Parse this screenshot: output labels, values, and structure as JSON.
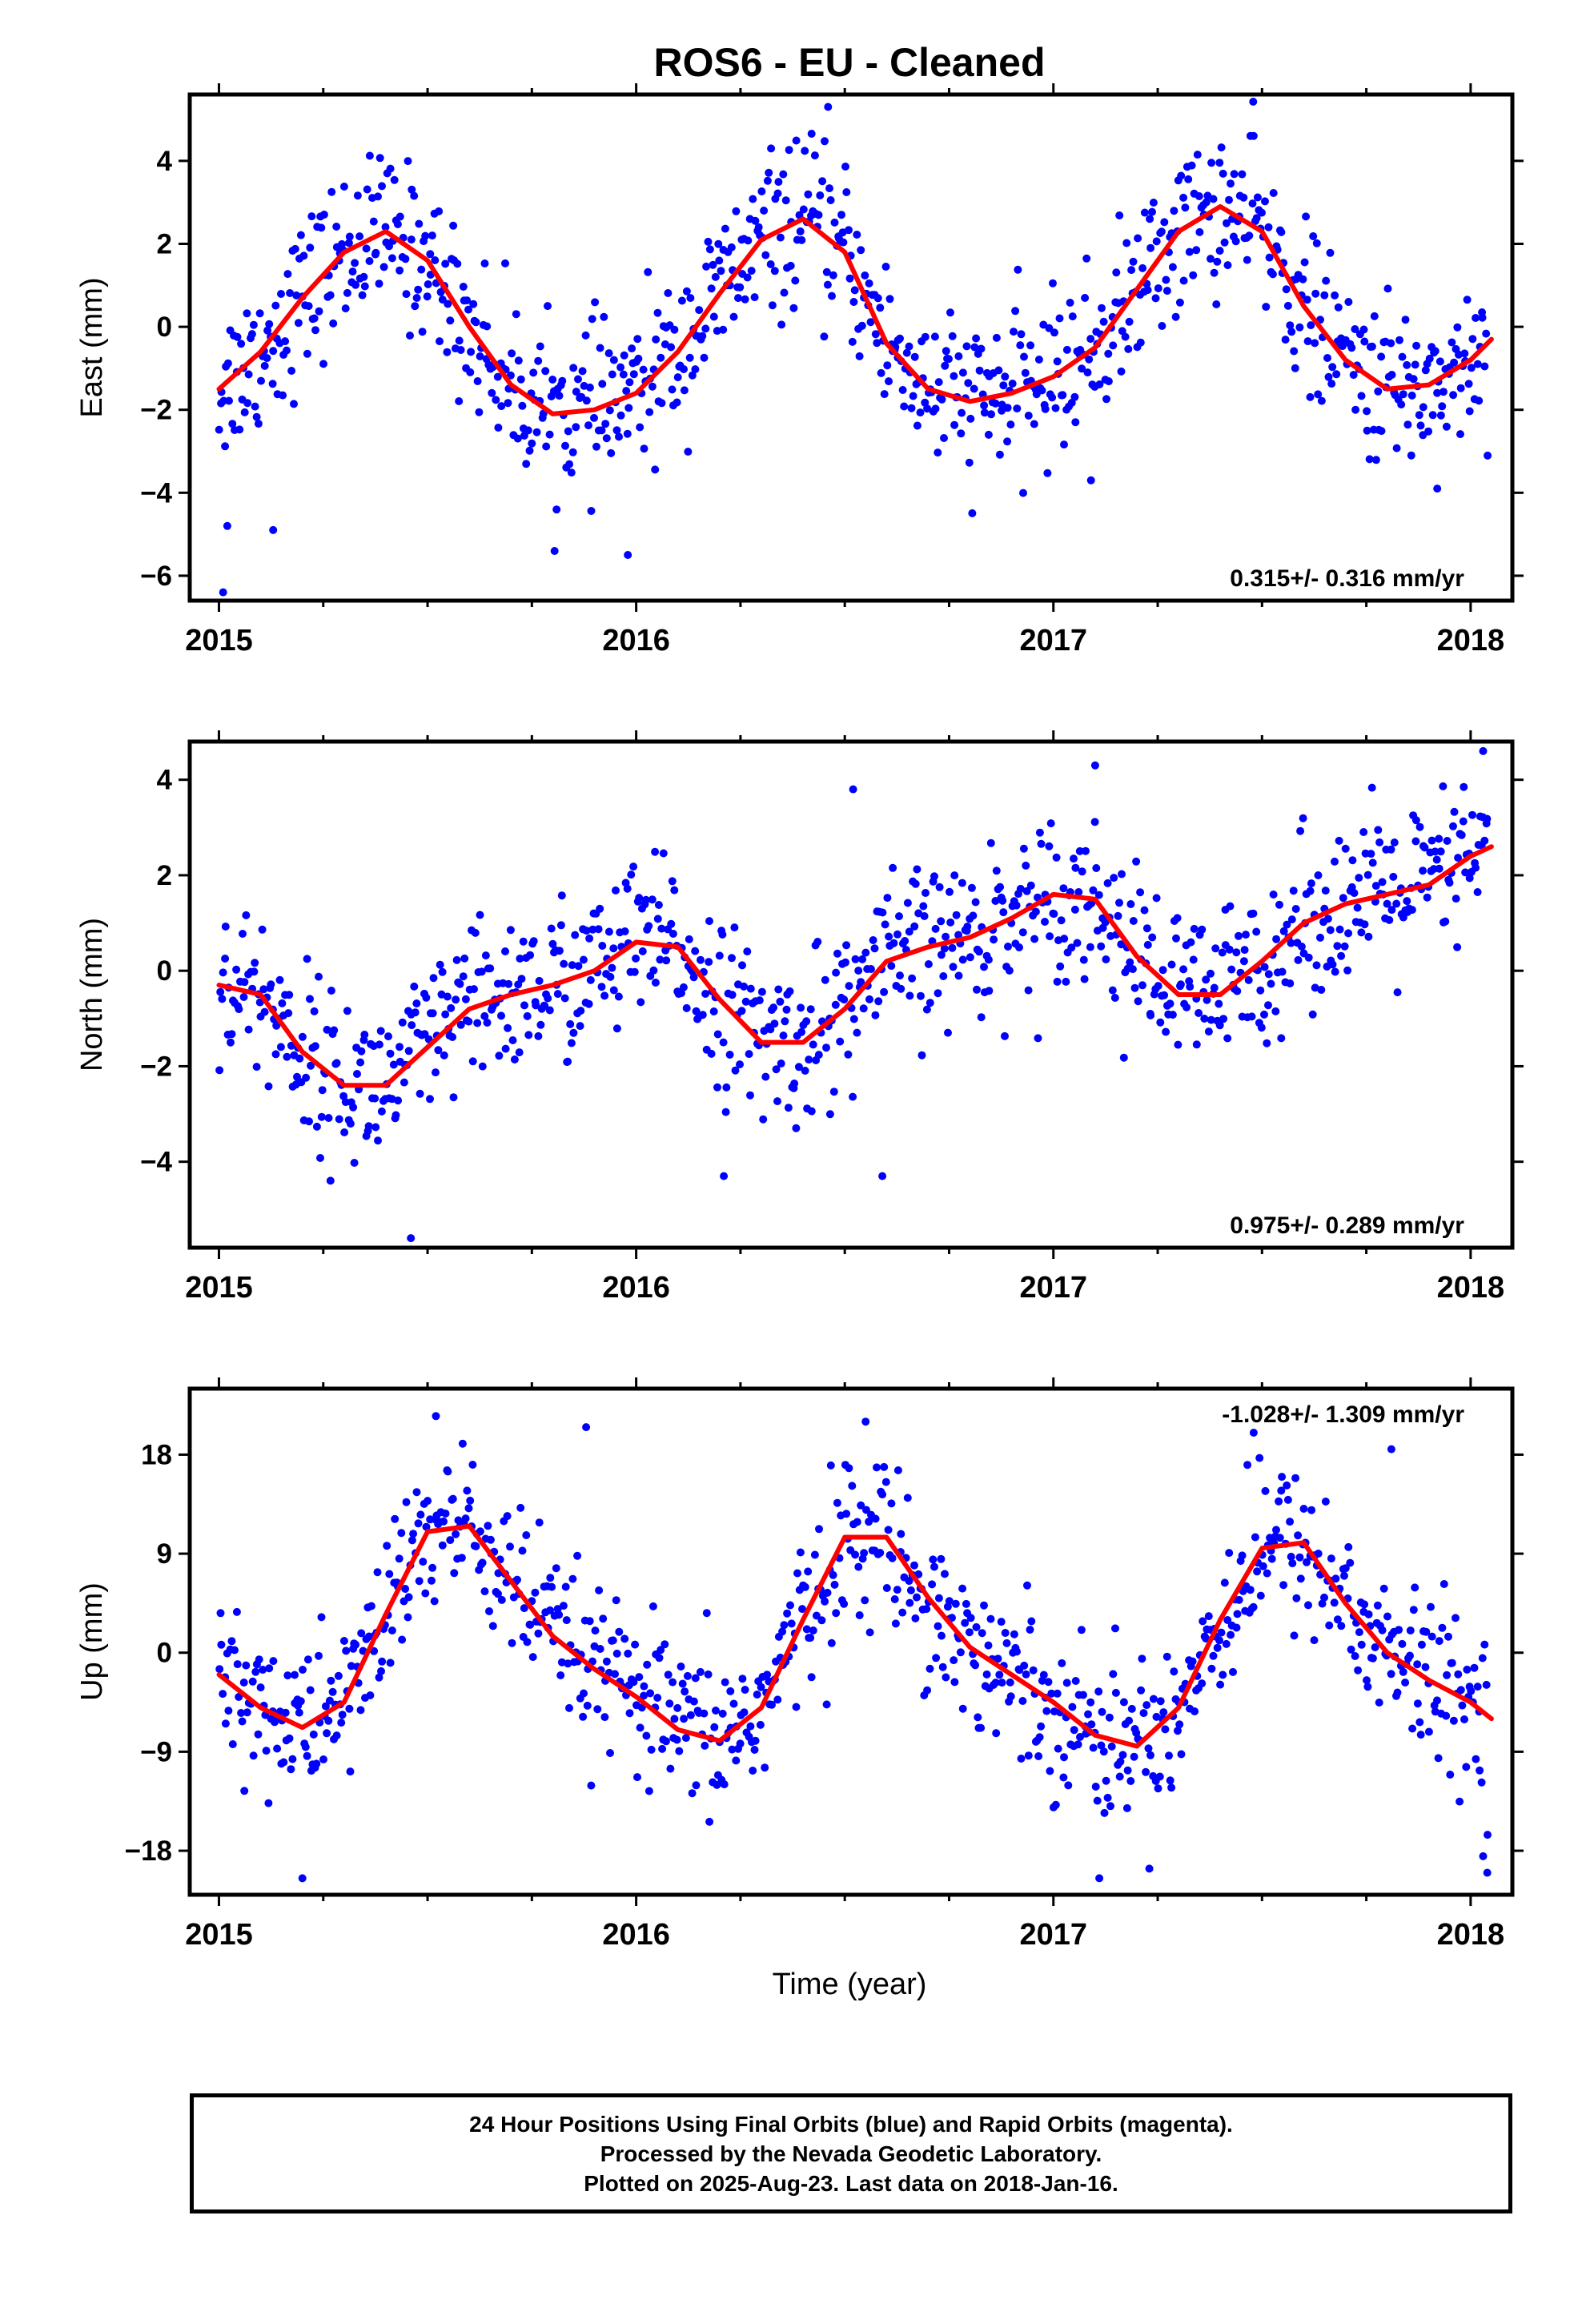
{
  "title": "ROS6  - EU - Cleaned",
  "xlabel": "Time (year)",
  "colors": {
    "points": "#0000ff",
    "fit": "#ff0000",
    "frame": "#000000"
  },
  "chart_data": [
    {
      "type": "scatter",
      "component": "east",
      "ylabel": "East (mm)",
      "xlim": [
        2014.93,
        2018.1
      ],
      "ylim": [
        -6.6,
        5.6
      ],
      "x_ticks": [
        2015,
        2016,
        2017,
        2018
      ],
      "y_ticks": [
        -6,
        -4,
        -2,
        0,
        2,
        4
      ],
      "rate_label": "0.315+/- 0.316 mm/yr",
      "rate_label_position": "bottom-right",
      "series": [
        {
          "role": "observed positions (blue)",
          "x_range": [
            2015.0,
            2018.04
          ],
          "mean_rate": 0.315,
          "annual_amplitude": 2.05,
          "phase_year": 0.38,
          "scatter": 0.95,
          "outliers": [
            [
              2015.01,
              -6.4
            ],
            [
              2015.02,
              -4.8
            ],
            [
              2015.13,
              -4.9
            ],
            [
              2015.98,
              -5.5
            ],
            [
              2016.46,
              5.3
            ],
            [
              2017.09,
              -3.7
            ],
            [
              2017.92,
              -3.9
            ],
            [
              2017.48,
              4.6
            ]
          ]
        },
        {
          "role": "model fit (red)",
          "x": [
            2015.0,
            2015.1,
            2015.2,
            2015.3,
            2015.4,
            2015.5,
            2015.6,
            2015.7,
            2015.8,
            2015.9,
            2016.0,
            2016.1,
            2016.2,
            2016.3,
            2016.4,
            2016.5,
            2016.6,
            2016.7,
            2016.8,
            2016.9,
            2017.0,
            2017.1,
            2017.2,
            2017.3,
            2017.4,
            2017.5,
            2017.6,
            2017.7,
            2017.8,
            2017.9,
            2018.0,
            2018.05
          ],
          "y": [
            -1.5,
            -0.6,
            0.7,
            1.8,
            2.3,
            1.6,
            0.0,
            -1.4,
            -2.1,
            -2.0,
            -1.6,
            -0.6,
            0.8,
            2.1,
            2.6,
            1.8,
            -0.4,
            -1.5,
            -1.8,
            -1.6,
            -1.2,
            -0.5,
            0.9,
            2.3,
            2.9,
            2.3,
            0.5,
            -0.8,
            -1.5,
            -1.4,
            -0.8,
            -0.3
          ]
        }
      ]
    },
    {
      "type": "scatter",
      "component": "north",
      "ylabel": "North (mm)",
      "xlim": [
        2014.93,
        2018.1
      ],
      "ylim": [
        -5.8,
        4.8
      ],
      "x_ticks": [
        2015,
        2016,
        2017,
        2018
      ],
      "y_ticks": [
        -4,
        -2,
        0,
        2,
        4
      ],
      "rate_label": "0.975+/- 0.289 mm/yr",
      "rate_label_position": "bottom-right",
      "series": [
        {
          "role": "observed positions (blue)",
          "x_range": [
            2015.0,
            2018.04
          ],
          "mean_rate": 0.975,
          "scatter": 0.85,
          "outliers": [
            [
              2015.46,
              -5.6
            ],
            [
              2016.21,
              -4.3
            ],
            [
              2016.59,
              -4.3
            ],
            [
              2016.52,
              3.8
            ],
            [
              2017.1,
              4.3
            ],
            [
              2018.03,
              4.6
            ]
          ]
        },
        {
          "role": "model fit (red)",
          "x": [
            2015.0,
            2015.1,
            2015.2,
            2015.3,
            2015.4,
            2015.5,
            2015.6,
            2015.7,
            2015.8,
            2015.9,
            2016.0,
            2016.1,
            2016.2,
            2016.3,
            2016.4,
            2016.5,
            2016.6,
            2016.7,
            2016.8,
            2016.9,
            2017.0,
            2017.1,
            2017.2,
            2017.3,
            2017.4,
            2017.5,
            2017.6,
            2017.7,
            2017.8,
            2017.9,
            2018.0,
            2018.05
          ],
          "y": [
            -0.3,
            -0.5,
            -1.7,
            -2.4,
            -2.4,
            -1.6,
            -0.8,
            -0.5,
            -0.3,
            0.0,
            0.6,
            0.5,
            -0.6,
            -1.5,
            -1.5,
            -0.8,
            0.2,
            0.5,
            0.7,
            1.1,
            1.6,
            1.5,
            0.3,
            -0.5,
            -0.5,
            0.2,
            1.0,
            1.4,
            1.6,
            1.8,
            2.4,
            2.6
          ]
        }
      ]
    },
    {
      "type": "scatter",
      "component": "up",
      "ylabel": "Up (mm)",
      "xlim": [
        2014.93,
        2018.1
      ],
      "ylim": [
        -22,
        24
      ],
      "x_ticks": [
        2015,
        2016,
        2017,
        2018
      ],
      "y_ticks": [
        -18,
        -9,
        0,
        9,
        18
      ],
      "rate_label": "-1.028+/- 1.309 mm/yr",
      "rate_label_position": "top-right",
      "series": [
        {
          "role": "observed positions (blue)",
          "x_range": [
            2015.0,
            2018.04
          ],
          "mean_rate": -1.028,
          "scatter": 3.6,
          "outliers": [
            [
              2015.2,
              -20.5
            ],
            [
              2015.52,
              21.5
            ],
            [
              2015.88,
              20.5
            ],
            [
              2016.55,
              21.0
            ],
            [
              2017.48,
              20.0
            ],
            [
              2017.81,
              18.5
            ],
            [
              2018.04,
              -20.0
            ],
            [
              2017.11,
              -20.5
            ],
            [
              2018.03,
              -18.5
            ]
          ]
        },
        {
          "role": "model fit (red)",
          "x": [
            2015.0,
            2015.1,
            2015.2,
            2015.3,
            2015.4,
            2015.5,
            2015.6,
            2015.7,
            2015.8,
            2015.9,
            2016.0,
            2016.1,
            2016.2,
            2016.3,
            2016.4,
            2016.5,
            2016.6,
            2016.7,
            2016.8,
            2016.9,
            2017.0,
            2017.1,
            2017.2,
            2017.3,
            2017.4,
            2017.5,
            2017.6,
            2017.7,
            2017.8,
            2017.9,
            2018.0,
            2018.05
          ],
          "y": [
            -2.0,
            -5.0,
            -6.8,
            -4.5,
            3.5,
            11.0,
            11.5,
            6.5,
            1.5,
            -1.5,
            -4.0,
            -7.0,
            -8.0,
            -5.0,
            3.0,
            10.5,
            10.5,
            5.0,
            0.5,
            -2.0,
            -4.5,
            -7.5,
            -8.5,
            -5.0,
            3.0,
            9.5,
            10.0,
            4.5,
            0.0,
            -2.5,
            -4.5,
            -6.0
          ]
        }
      ]
    }
  ],
  "footer": {
    "line1": "24 Hour Positions Using Final Orbits (blue) and Rapid Orbits (magenta).",
    "line2": "Processed by the Nevada Geodetic Laboratory.",
    "line3": "Plotted on 2025-Aug-23. Last data on 2018-Jan-16."
  }
}
